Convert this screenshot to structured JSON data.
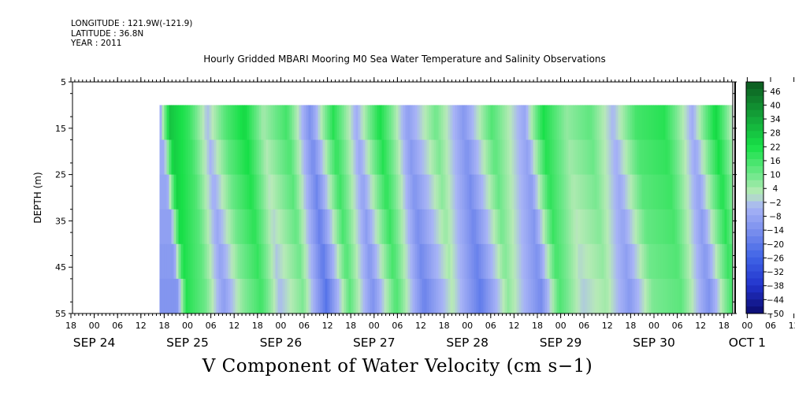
{
  "header": {
    "longitude": "LONGITUDE : 121.9W(-121.9)",
    "latitude": "LATITUDE : 36.8N",
    "year": "YEAR : 2011"
  },
  "chart_data": {
    "type": "heatmap",
    "title": "Hourly Gridded MBARI Mooring M0 Sea Water Temperature and Salinity Observations",
    "xlabel": "V Component of Water Velocity (cm s−1)",
    "ylabel": "DEPTH (m)",
    "ylim": [
      5,
      55
    ],
    "y_inverted": true,
    "y_ticks": [
      5,
      15,
      25,
      35,
      45,
      55
    ],
    "x_hour_ticks": [
      "18",
      "00",
      "06",
      "12",
      "18",
      "00",
      "06",
      "12",
      "18",
      "00",
      "06",
      "12",
      "18",
      "00",
      "06",
      "12",
      "18",
      "00",
      "06",
      "12",
      "18",
      "00",
      "06",
      "12",
      "18",
      "00",
      "06",
      "12",
      "18",
      "00",
      "06",
      "12",
      "18"
    ],
    "x_date_labels": [
      "SEP 24",
      "SEP 25",
      "SEP 26",
      "SEP 27",
      "SEP 28",
      "SEP 29",
      "SEP 30",
      "OCT  1"
    ],
    "data_depth_range": [
      10,
      55
    ],
    "colorbar": {
      "labels": [
        46,
        40,
        34,
        28,
        22,
        16,
        10,
        4,
        -2,
        -8,
        -14,
        -20,
        -26,
        -32,
        -38,
        -44,
        -50
      ],
      "range": [
        -50,
        50
      ]
    },
    "velocity_profile": [
      {
        "day": 0.95,
        "v": -5
      },
      {
        "day": 1.05,
        "v": 28
      },
      {
        "day": 1.25,
        "v": 18
      },
      {
        "day": 1.45,
        "v": -3
      },
      {
        "day": 1.65,
        "v": 14
      },
      {
        "day": 1.85,
        "v": 24
      },
      {
        "day": 2.05,
        "v": 4
      },
      {
        "day": 2.3,
        "v": 16
      },
      {
        "day": 2.55,
        "v": -14
      },
      {
        "day": 2.8,
        "v": 20
      },
      {
        "day": 3.05,
        "v": -6
      },
      {
        "day": 3.3,
        "v": 22
      },
      {
        "day": 3.6,
        "v": -10
      },
      {
        "day": 3.9,
        "v": 10
      },
      {
        "day": 4.2,
        "v": -12
      },
      {
        "day": 4.5,
        "v": 14
      },
      {
        "day": 4.85,
        "v": -8
      },
      {
        "day": 5.05,
        "v": 22
      },
      {
        "day": 5.3,
        "v": 6
      },
      {
        "day": 5.55,
        "v": 12
      },
      {
        "day": 5.8,
        "v": -4
      },
      {
        "day": 6.05,
        "v": 16
      },
      {
        "day": 6.35,
        "v": 20
      },
      {
        "day": 6.65,
        "v": -6
      },
      {
        "day": 6.9,
        "v": 24
      },
      {
        "day": 7.1,
        "v": -2
      },
      {
        "day": 7.35,
        "v": 10
      },
      {
        "day": 7.6,
        "v": -4
      },
      {
        "day": 7.75,
        "v": 8
      }
    ]
  }
}
